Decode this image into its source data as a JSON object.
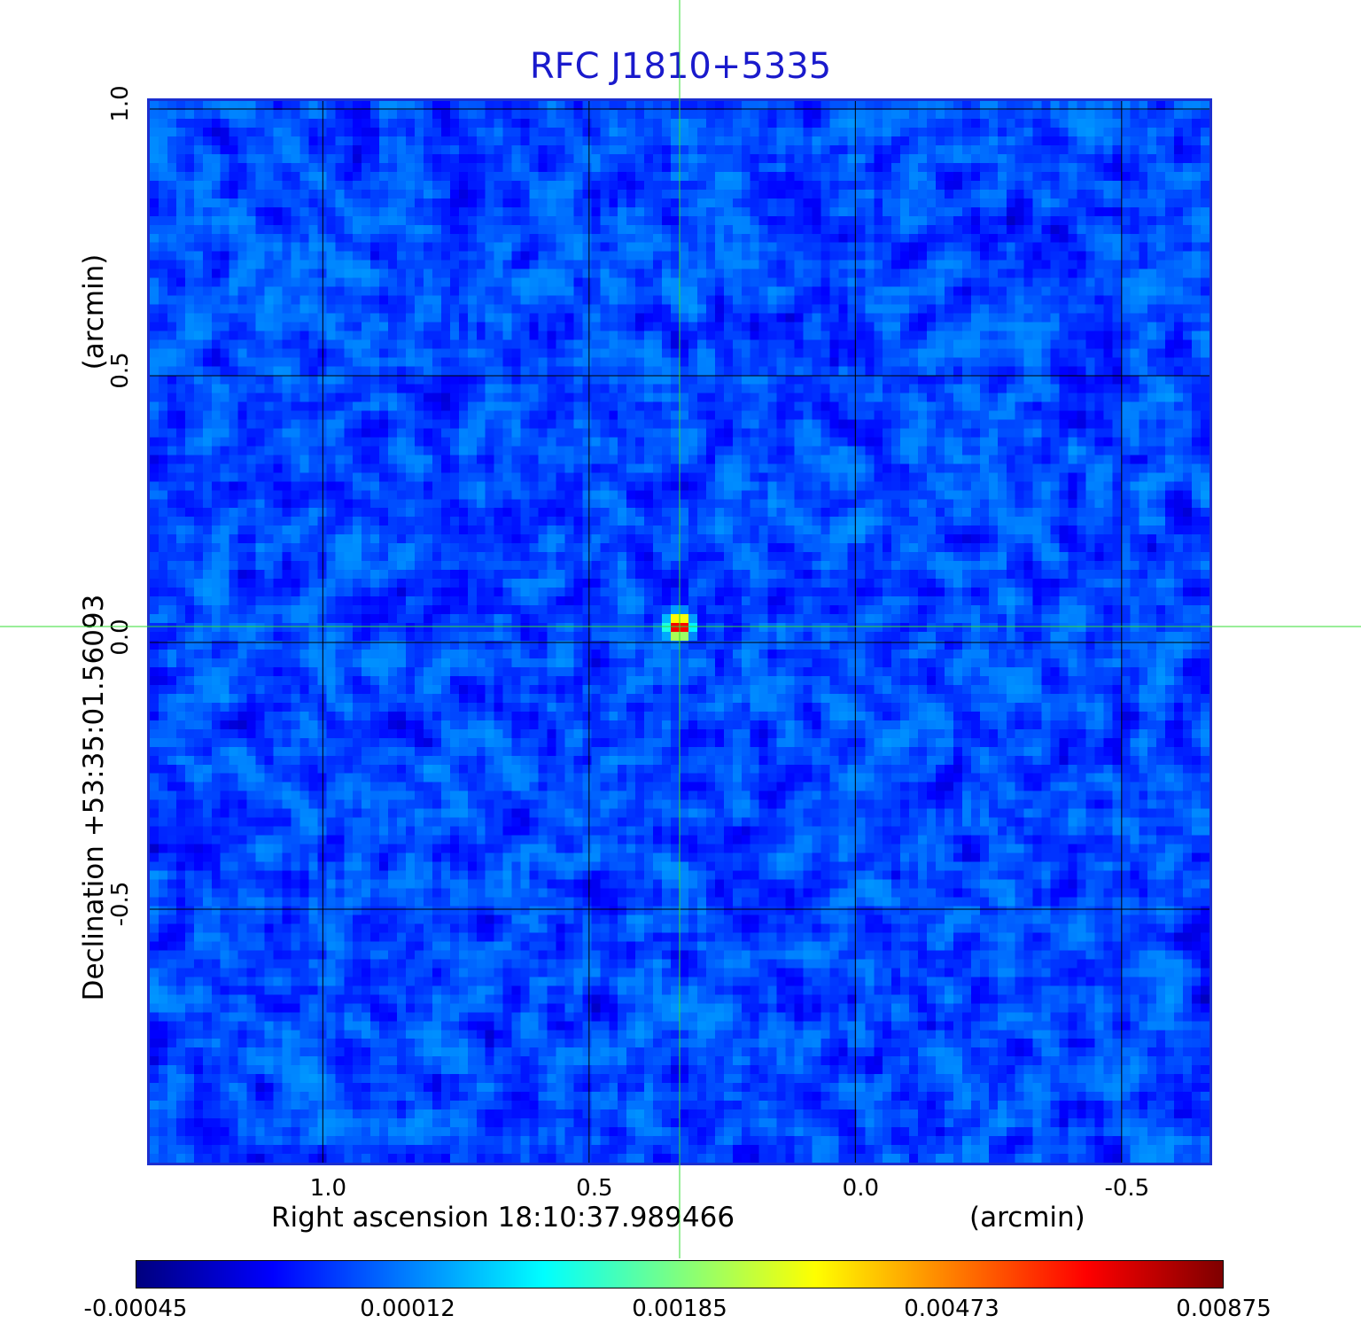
{
  "chart_data": {
    "type": "heatmap",
    "title": "RFC J1810+5335",
    "xlabel": "Right ascension  18:10:37.989466",
    "xlabel_unit": "(arcmin)",
    "ylabel": "Declination  +53:35:01.56093",
    "ylabel_unit": "(arcmin)",
    "xlim": [
      1.33,
      -0.67
    ],
    "ylim": [
      -0.98,
      1.02
    ],
    "x_ticks": [
      {
        "value": 1.0,
        "label": "1.0"
      },
      {
        "value": 0.5,
        "label": "0.5"
      },
      {
        "value": 0.0,
        "label": "0.0"
      },
      {
        "value": -0.5,
        "label": "-0.5"
      }
    ],
    "y_ticks": [
      {
        "value": 1.0,
        "label": "1.0"
      },
      {
        "value": 0.5,
        "label": "0.5"
      },
      {
        "value": 0.0,
        "label": "0.0"
      },
      {
        "value": -0.5,
        "label": "-0.5"
      }
    ],
    "grid": true,
    "colormap": "jet",
    "colorbar": {
      "placement": "bottom",
      "ticks": [
        "-0.00045",
        "0.00012",
        "0.00185",
        "0.00473",
        "0.00875"
      ],
      "min": -0.00045,
      "max": 0.00875
    },
    "source": {
      "x": 0.33,
      "y": 0.03,
      "peak": 0.00875
    },
    "background_level": 0.0,
    "crosshair": {
      "x": 0.33,
      "y": 0.03,
      "color": "#33dd33"
    },
    "frame_color": "#1b2fd0",
    "title_color": "#1a1acc"
  }
}
